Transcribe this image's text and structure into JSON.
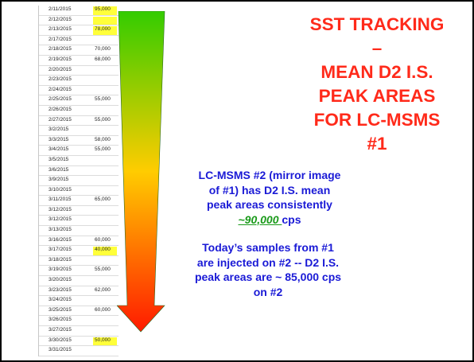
{
  "sheet": {
    "rows": [
      {
        "date": "2/11/2015",
        "value": "95,000",
        "highlight": true
      },
      {
        "date": "2/12/2015",
        "value": "",
        "highlight": true
      },
      {
        "date": "2/13/2015",
        "value": "78,000",
        "highlight": true
      },
      {
        "date": "2/17/2015",
        "value": "",
        "highlight": false
      },
      {
        "date": "2/18/2015",
        "value": "70,000",
        "highlight": false
      },
      {
        "date": "2/19/2015",
        "value": "68,000",
        "highlight": false
      },
      {
        "date": "2/20/2015",
        "value": "",
        "highlight": false
      },
      {
        "date": "2/23/2015",
        "value": "",
        "highlight": false
      },
      {
        "date": "2/24/2015",
        "value": "",
        "highlight": false
      },
      {
        "date": "2/25/2015",
        "value": "55,000",
        "highlight": false
      },
      {
        "date": "2/26/2015",
        "value": "",
        "highlight": false
      },
      {
        "date": "2/27/2015",
        "value": "55,000",
        "highlight": false
      },
      {
        "date": "3/2/2015",
        "value": "",
        "highlight": false
      },
      {
        "date": "3/3/2015",
        "value": "58,000",
        "highlight": false
      },
      {
        "date": "3/4/2015",
        "value": "55,000",
        "highlight": false
      },
      {
        "date": "3/5/2015",
        "value": "",
        "highlight": false
      },
      {
        "date": "3/6/2015",
        "value": "",
        "highlight": false
      },
      {
        "date": "3/9/2015",
        "value": "",
        "highlight": false
      },
      {
        "date": "3/10/2015",
        "value": "",
        "highlight": false
      },
      {
        "date": "3/11/2015",
        "value": "65,000",
        "highlight": false
      },
      {
        "date": "3/12/2015",
        "value": "",
        "highlight": false
      },
      {
        "date": "3/12/2015",
        "value": "",
        "highlight": false
      },
      {
        "date": "3/13/2015",
        "value": "",
        "highlight": false
      },
      {
        "date": "3/16/2015",
        "value": "60,000",
        "highlight": false
      },
      {
        "date": "3/17/2015",
        "value": "40,000",
        "highlight": true
      },
      {
        "date": "3/18/2015",
        "value": "",
        "highlight": false
      },
      {
        "date": "3/19/2015",
        "value": "55,000",
        "highlight": false
      },
      {
        "date": "3/20/2015",
        "value": "",
        "highlight": false
      },
      {
        "date": "3/23/2015",
        "value": "62,000",
        "highlight": false
      },
      {
        "date": "3/24/2015",
        "value": "",
        "highlight": false
      },
      {
        "date": "3/25/2015",
        "value": "60,000",
        "highlight": false
      },
      {
        "date": "3/26/2015",
        "value": "",
        "highlight": false
      },
      {
        "date": "3/27/2015",
        "value": "",
        "highlight": false
      },
      {
        "date": "3/30/2015",
        "value": "50,000",
        "highlight": true
      },
      {
        "date": "3/31/2015",
        "value": "",
        "highlight": false
      }
    ]
  },
  "title": {
    "line1": "SST TRACKING",
    "line2": "–",
    "line3": "MEAN D2 I.S.",
    "line4": "PEAK AREAS",
    "line5": "FOR LC-MSMS",
    "line6": "#1"
  },
  "note1": {
    "line1": "LC-MSMS #2 (mirror image",
    "line2": "of #1)  has D2 I.S. mean",
    "line3": "peak areas consistently",
    "highlight": "~90,000 ",
    "unit": "cps"
  },
  "note2": {
    "line1": "Today’s samples from #1",
    "line2": "are injected on #2 -- D2 I.S.",
    "line3": "peak areas are ~ 85,000 cps",
    "line4": "on #2"
  },
  "colors": {
    "title": "#ff2a1a",
    "note": "#1a1ad6",
    "highlight_value": "#1a9a1a",
    "cell_highlight": "#ffff3a",
    "arrow_top": "#33cc00",
    "arrow_middle": "#ffcc00",
    "arrow_bottom": "#ff1a00"
  }
}
